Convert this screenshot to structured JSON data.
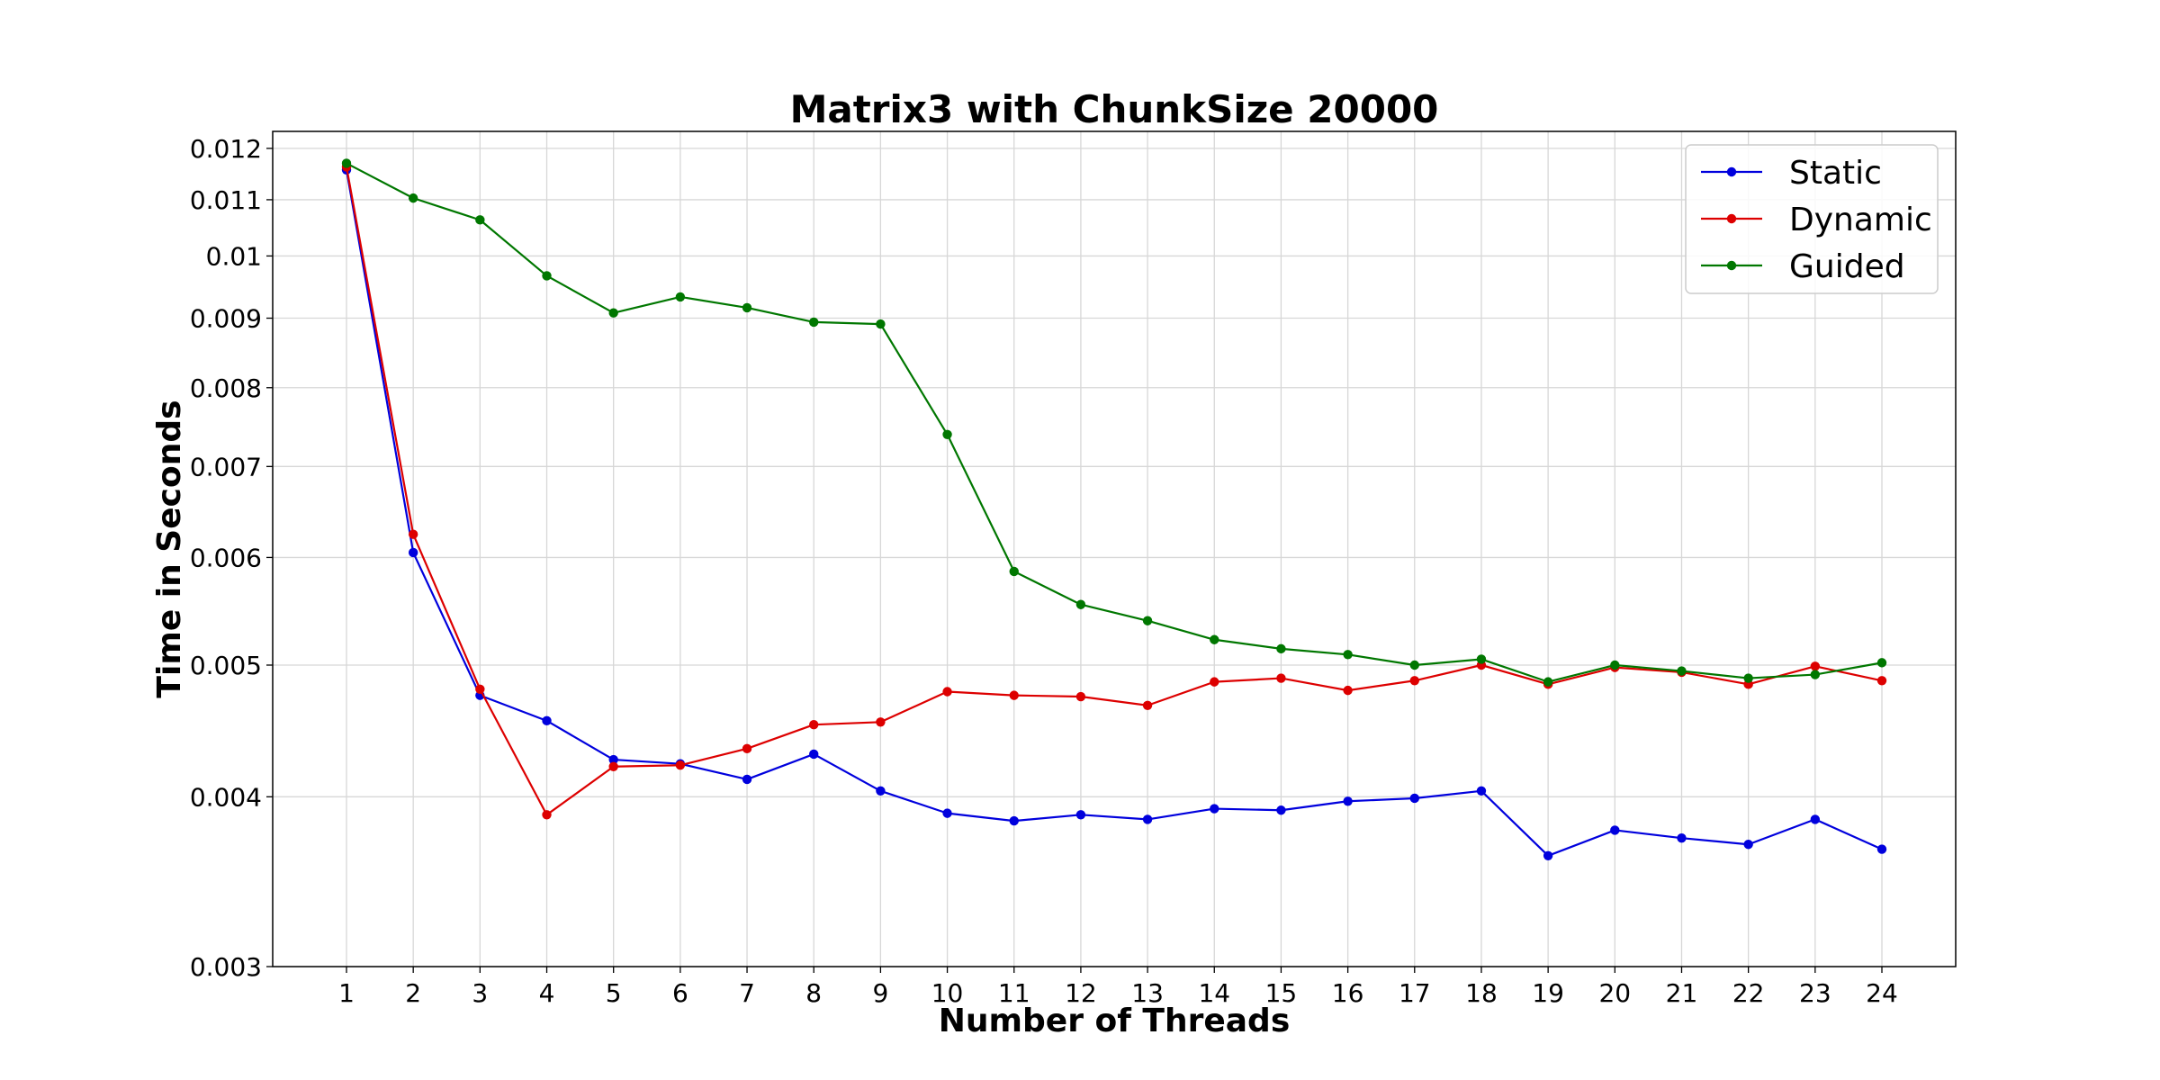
{
  "chart_data": {
    "type": "line",
    "title": "Matrix3 with ChunkSize 20000",
    "xlabel": "Number of Threads",
    "ylabel": "Time in Seconds",
    "y_scale": "log",
    "ylim": [
      0.003,
      0.01235
    ],
    "x": [
      1,
      2,
      3,
      4,
      5,
      6,
      7,
      8,
      9,
      10,
      11,
      12,
      13,
      14,
      15,
      16,
      17,
      18,
      19,
      20,
      21,
      22,
      23,
      24
    ],
    "y_ticks": [
      0.003,
      0.004,
      0.005,
      0.006,
      0.007,
      0.008,
      0.009,
      0.01,
      0.011,
      0.012
    ],
    "y_tick_labels": [
      "0.003",
      "0.004",
      "0.005",
      "0.006",
      "0.007",
      "0.008",
      "0.009",
      "0.01",
      "0.011",
      "0.012"
    ],
    "grid": true,
    "legend_position": "top-right",
    "series": [
      {
        "name": "Static",
        "color": "#0000dd",
        "values": [
          0.01157,
          0.00605,
          0.00475,
          0.00455,
          0.00426,
          0.00423,
          0.00412,
          0.0043,
          0.00404,
          0.00389,
          0.00384,
          0.00388,
          0.00385,
          0.00392,
          0.00391,
          0.00397,
          0.00399,
          0.00404,
          0.00362,
          0.00378,
          0.00373,
          0.00369,
          0.00385,
          0.00366
        ]
      },
      {
        "name": "Dynamic",
        "color": "#dd0000",
        "values": [
          0.01163,
          0.00624,
          0.0048,
          0.00388,
          0.00421,
          0.00422,
          0.00434,
          0.00452,
          0.00454,
          0.00478,
          0.00475,
          0.00474,
          0.00467,
          0.00486,
          0.00489,
          0.00479,
          0.00487,
          0.005,
          0.00484,
          0.00498,
          0.00494,
          0.00484,
          0.00499,
          0.00487
        ]
      },
      {
        "name": "Guided",
        "color": "#007700",
        "values": [
          0.0117,
          0.01103,
          0.01063,
          0.00967,
          0.00908,
          0.00933,
          0.00916,
          0.00894,
          0.00891,
          0.00739,
          0.00586,
          0.00554,
          0.00539,
          0.00522,
          0.00514,
          0.00509,
          0.005,
          0.00505,
          0.00486,
          0.005,
          0.00495,
          0.00489,
          0.00492,
          0.00502
        ]
      }
    ]
  }
}
